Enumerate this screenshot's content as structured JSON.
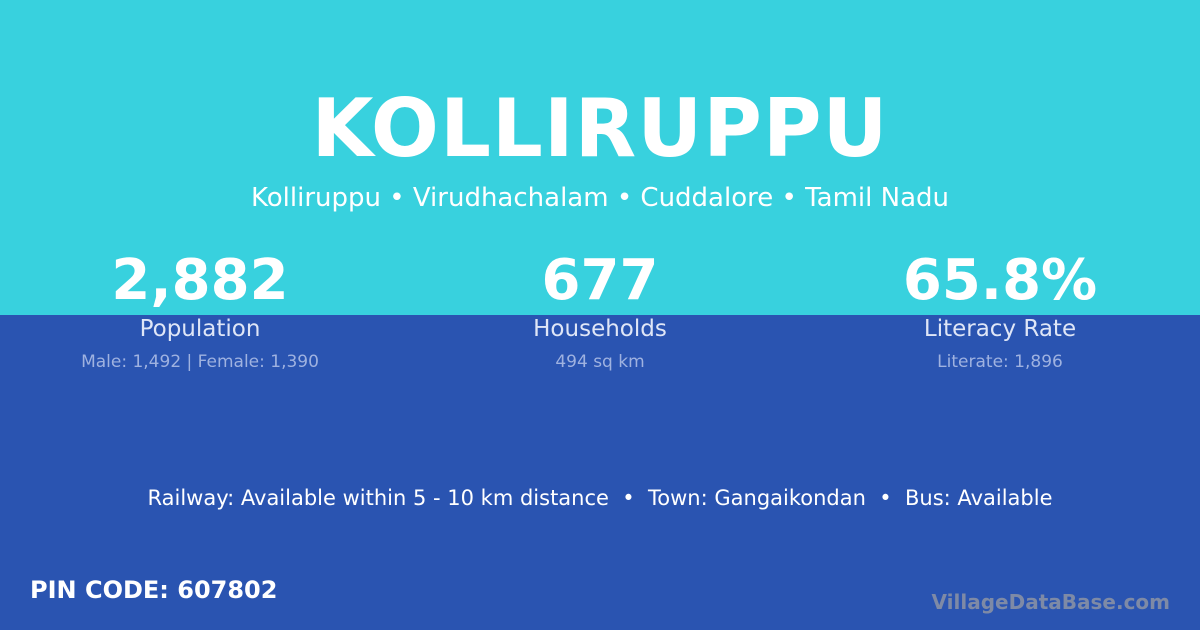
{
  "title": "KOLLIRUPPU",
  "subtitle": "Kolliruppu • Virudhachalam • Cuddalore • Tamil Nadu",
  "stats": [
    {
      "value": "2,882",
      "label": "Population",
      "detail": "Male: 1,492 | Female: 1,390"
    },
    {
      "value": "677",
      "label": "Households",
      "detail": "494 sq km"
    },
    {
      "value": "65.8%",
      "label": "Literacy Rate",
      "detail": "Literate: 1,896"
    }
  ],
  "info": "Railway: Available within 5 - 10 km distance  •  Town: Gangaikondan  •  Bus: Available",
  "pin": "PIN CODE: 607802",
  "brand": "VillageDataBase.com",
  "colors": {
    "top": "#38d1de",
    "bottom": "#2a54b1"
  }
}
